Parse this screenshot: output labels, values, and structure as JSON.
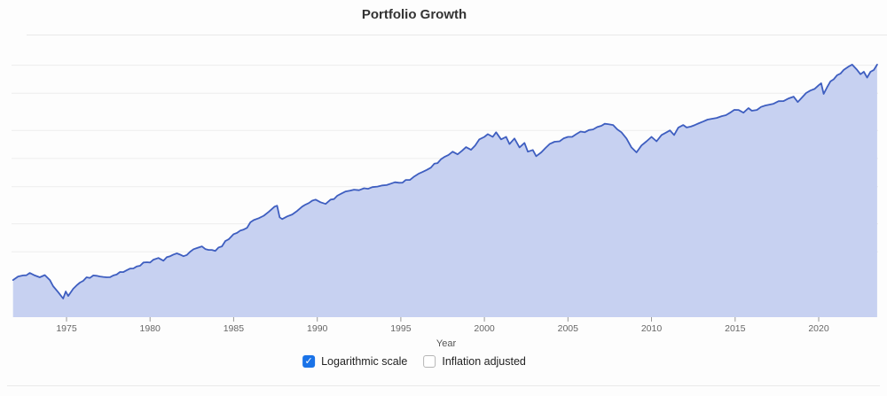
{
  "title": "Portfolio Growth",
  "colors": {
    "line": "#3e5ec0",
    "fill": "#c7d1f1",
    "grid": "#ededed",
    "checkbox_accent": "#1a73e8"
  },
  "controls": [
    {
      "id": "logarithmic-scale",
      "label": "Logarithmic scale",
      "checked": true
    },
    {
      "id": "inflation-adjusted",
      "label": "Inflation adjusted",
      "checked": false
    }
  ],
  "chart_data": {
    "type": "area",
    "title": "Portfolio Growth",
    "xlabel": "Year",
    "ylabel": "",
    "legend": [],
    "grid": true,
    "y_scale": "log",
    "y_axis_labels_visible": false,
    "estimated_start_value_usd": 10000,
    "x_range": [
      1971.8,
      2023.5
    ],
    "y_domain": [
      4000,
      3000000
    ],
    "y_gridline_values": [
      20000,
      40000,
      100000,
      200000,
      400000,
      1000000,
      2000000
    ],
    "x_tick_years": [
      1975,
      1980,
      1985,
      1990,
      1995,
      2000,
      2005,
      2010,
      2015,
      2020
    ],
    "points": [
      [
        1971.8,
        10000
      ],
      [
        1972.1,
        10900
      ],
      [
        1972.4,
        11200
      ],
      [
        1972.8,
        11900
      ],
      [
        1973.1,
        11200
      ],
      [
        1973.4,
        10700
      ],
      [
        1973.7,
        11300
      ],
      [
        1974.0,
        10000
      ],
      [
        1974.2,
        8600
      ],
      [
        1974.5,
        7400
      ],
      [
        1974.8,
        6330
      ],
      [
        1974.95,
        7530
      ],
      [
        1975.1,
        6740
      ],
      [
        1975.4,
        8040
      ],
      [
        1975.8,
        9380
      ],
      [
        1976.2,
        10700
      ],
      [
        1976.6,
        11200
      ],
      [
        1977.0,
        10900
      ],
      [
        1977.4,
        10700
      ],
      [
        1977.8,
        11200
      ],
      [
        1978.2,
        12200
      ],
      [
        1978.6,
        12700
      ],
      [
        1979.0,
        13300
      ],
      [
        1979.4,
        14200
      ],
      [
        1979.8,
        15500
      ],
      [
        1980.2,
        16500
      ],
      [
        1980.5,
        17200
      ],
      [
        1980.8,
        16100
      ],
      [
        1981.2,
        18000
      ],
      [
        1981.6,
        19300
      ],
      [
        1982.0,
        18000
      ],
      [
        1982.4,
        20100
      ],
      [
        1982.8,
        22000
      ],
      [
        1983.1,
        22900
      ],
      [
        1983.5,
        21000
      ],
      [
        1983.9,
        20500
      ],
      [
        1984.3,
        22900
      ],
      [
        1984.7,
        27300
      ],
      [
        1985.0,
        31000
      ],
      [
        1985.4,
        33900
      ],
      [
        1985.8,
        36200
      ],
      [
        1986.2,
        43900
      ],
      [
        1986.5,
        45900
      ],
      [
        1986.8,
        48800
      ],
      [
        1987.1,
        53700
      ],
      [
        1987.45,
        61100
      ],
      [
        1987.6,
        62500
      ],
      [
        1987.75,
        46900
      ],
      [
        1987.9,
        44900
      ],
      [
        1988.2,
        48000
      ],
      [
        1988.5,
        50300
      ],
      [
        1988.8,
        54900
      ],
      [
        1989.1,
        61100
      ],
      [
        1989.5,
        66700
      ],
      [
        1989.9,
        72700
      ],
      [
        1990.2,
        68100
      ],
      [
        1990.5,
        65200
      ],
      [
        1990.8,
        72700
      ],
      [
        1991.2,
        80000
      ],
      [
        1991.7,
        88800
      ],
      [
        1992.2,
        92800
      ],
      [
        1992.8,
        96000
      ],
      [
        1993.3,
        98800
      ],
      [
        1993.9,
        103000
      ],
      [
        1994.4,
        107600
      ],
      [
        1994.9,
        110000
      ],
      [
        1995.3,
        118000
      ],
      [
        1995.8,
        128500
      ],
      [
        1996.3,
        143600
      ],
      [
        1996.8,
        160000
      ],
      [
        1997.2,
        178800
      ],
      [
        1997.6,
        208000
      ],
      [
        1998.1,
        237000
      ],
      [
        1998.4,
        222000
      ],
      [
        1998.9,
        265000
      ],
      [
        1999.2,
        248000
      ],
      [
        1999.7,
        321000
      ],
      [
        2000.0,
        341000
      ],
      [
        2000.2,
        365000
      ],
      [
        2000.5,
        341000
      ],
      [
        2000.7,
        382000
      ],
      [
        2001.0,
        321000
      ],
      [
        2001.3,
        341000
      ],
      [
        2001.5,
        286000
      ],
      [
        2001.8,
        328000
      ],
      [
        2002.1,
        263000
      ],
      [
        2002.4,
        294000
      ],
      [
        2002.6,
        237000
      ],
      [
        2002.9,
        247000
      ],
      [
        2003.1,
        212000
      ],
      [
        2003.4,
        233000
      ],
      [
        2003.9,
        286000
      ],
      [
        2004.5,
        306000
      ],
      [
        2005.0,
        341000
      ],
      [
        2005.5,
        365000
      ],
      [
        2006.0,
        382000
      ],
      [
        2006.5,
        410000
      ],
      [
        2007.0,
        448000
      ],
      [
        2007.4,
        467000
      ],
      [
        2007.7,
        457000
      ],
      [
        2008.2,
        382000
      ],
      [
        2008.5,
        328000
      ],
      [
        2008.8,
        263000
      ],
      [
        2009.1,
        233000
      ],
      [
        2009.4,
        276000
      ],
      [
        2009.7,
        306000
      ],
      [
        2010.0,
        341000
      ],
      [
        2010.3,
        306000
      ],
      [
        2010.6,
        357000
      ],
      [
        2010.9,
        382000
      ],
      [
        2011.1,
        400000
      ],
      [
        2011.35,
        357000
      ],
      [
        2011.6,
        428000
      ],
      [
        2011.9,
        457000
      ],
      [
        2012.1,
        430000
      ],
      [
        2012.6,
        457000
      ],
      [
        2013.1,
        499000
      ],
      [
        2013.6,
        533000
      ],
      [
        2014.2,
        569000
      ],
      [
        2014.7,
        620000
      ],
      [
        2015.2,
        663000
      ],
      [
        2015.5,
        620000
      ],
      [
        2015.8,
        694000
      ],
      [
        2016.0,
        650000
      ],
      [
        2016.3,
        663000
      ],
      [
        2016.8,
        740000
      ],
      [
        2017.3,
        772000
      ],
      [
        2017.9,
        825000
      ],
      [
        2018.2,
        880000
      ],
      [
        2018.5,
        920000
      ],
      [
        2018.75,
        806000
      ],
      [
        2019.0,
        900000
      ],
      [
        2019.5,
        1070000
      ],
      [
        2020.0,
        1220000
      ],
      [
        2020.15,
        1280000
      ],
      [
        2020.3,
        984000
      ],
      [
        2020.7,
        1340000
      ],
      [
        2021.1,
        1560000
      ],
      [
        2021.5,
        1780000
      ],
      [
        2021.8,
        1940000
      ],
      [
        2022.0,
        2030000
      ],
      [
        2022.3,
        1780000
      ],
      [
        2022.5,
        1600000
      ],
      [
        2022.7,
        1700000
      ],
      [
        2022.9,
        1470000
      ],
      [
        2023.1,
        1700000
      ],
      [
        2023.3,
        1780000
      ],
      [
        2023.5,
        2030000
      ]
    ]
  }
}
